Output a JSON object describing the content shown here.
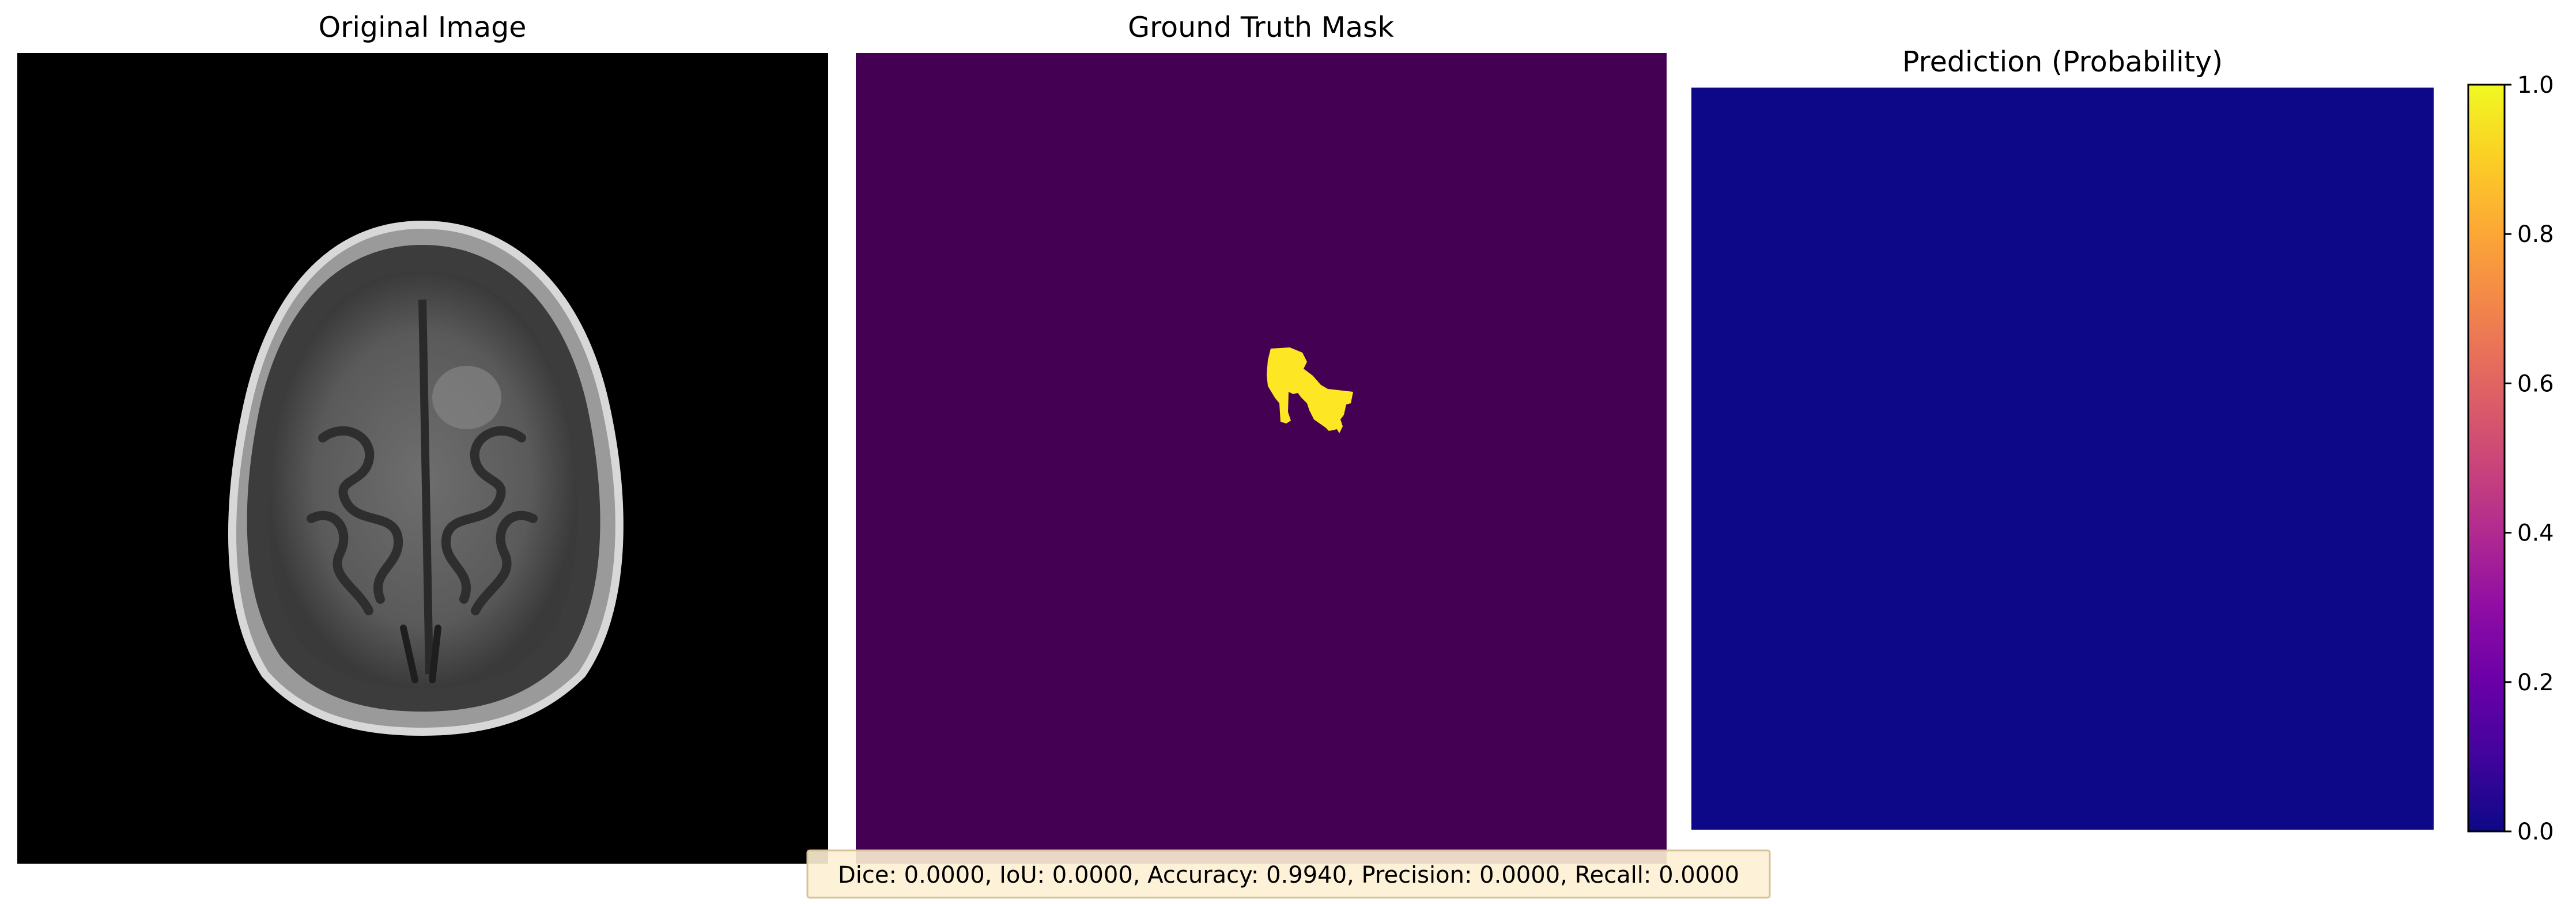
{
  "panels": {
    "original": {
      "title": "Original Image"
    },
    "ground_truth": {
      "title": "Ground Truth Mask"
    },
    "prediction": {
      "title": "Prediction (Probability)"
    }
  },
  "colors": {
    "mask_background": "#440154",
    "mask_foreground": "#fde725",
    "prediction_fill": "#0d0887",
    "image_background": "#000000",
    "metrics_box_fill": "#fdf0d3",
    "metrics_box_border": "#d9c29a"
  },
  "colorbar": {
    "colormap": "plasma",
    "range": [
      0,
      1
    ],
    "ticks": [
      "0.0",
      "0.2",
      "0.4",
      "0.6",
      "0.8",
      "1.0"
    ]
  },
  "metrics": {
    "text": "Dice: 0.0000, IoU: 0.0000, Accuracy: 0.9940, Precision: 0.0000, Recall: 0.0000"
  }
}
